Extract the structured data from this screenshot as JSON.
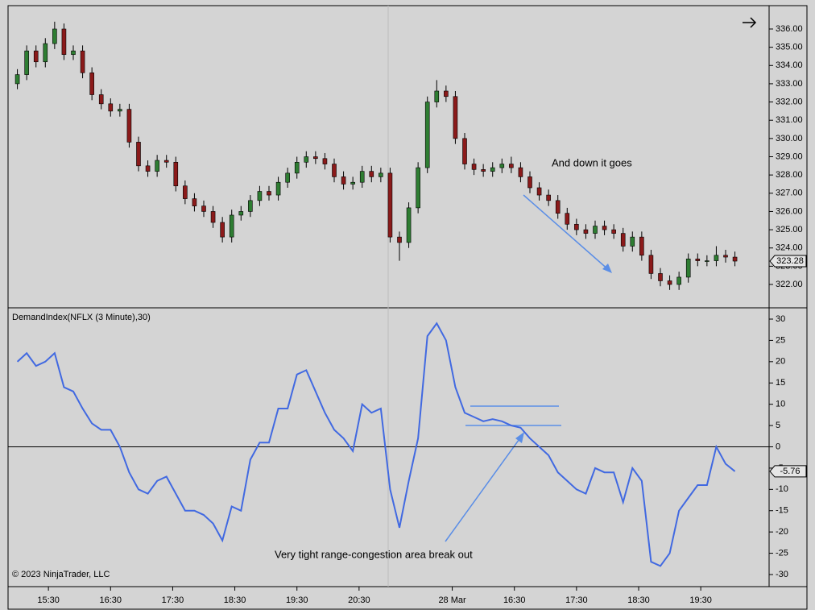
{
  "chart_data": [
    {
      "type": "candlestick",
      "annotation": "And down it goes",
      "up_color": "#2e7d32",
      "down_color": "#8b1a1a",
      "x": [
        3,
        6,
        9,
        12,
        15,
        18,
        21,
        24,
        27,
        30,
        33,
        36,
        39,
        42,
        45,
        48,
        51,
        54,
        57,
        60,
        63,
        66,
        69,
        72,
        75,
        78,
        81,
        84,
        87,
        90,
        93,
        96,
        99,
        102,
        105,
        108,
        111,
        114,
        117,
        120,
        123,
        126,
        129,
        132,
        135,
        138,
        141,
        144,
        147,
        150,
        153,
        156,
        159,
        162,
        165,
        168,
        171,
        174,
        177,
        180,
        183,
        186,
        189,
        192,
        195,
        198,
        201,
        204,
        207,
        210,
        213,
        216,
        219,
        222,
        225,
        228,
        231,
        234
      ],
      "open": [
        333.0,
        333.5,
        334.8,
        334.2,
        335.2,
        336.0,
        334.6,
        334.8,
        333.6,
        332.4,
        331.9,
        331.5,
        331.6,
        329.8,
        328.5,
        328.2,
        328.8,
        328.7,
        327.4,
        326.7,
        326.3,
        326.0,
        325.4,
        324.6,
        325.8,
        326.0,
        326.6,
        327.1,
        326.9,
        327.6,
        328.1,
        328.7,
        329.0,
        328.9,
        328.6,
        327.9,
        327.5,
        327.6,
        328.2,
        327.9,
        328.1,
        324.6,
        324.3,
        326.2,
        328.4,
        332.0,
        332.6,
        332.3,
        330.0,
        328.6,
        328.3,
        328.2,
        328.4,
        328.6,
        328.4,
        327.9,
        327.3,
        326.9,
        326.6,
        325.9,
        325.3,
        325.0,
        324.8,
        325.2,
        325.0,
        324.8,
        324.1,
        324.6,
        323.6,
        322.6,
        322.2,
        322.0,
        322.4,
        323.4,
        323.3,
        323.3,
        323.6,
        323.5
      ],
      "high": [
        333.8,
        335.1,
        335.1,
        335.5,
        336.4,
        336.3,
        335.1,
        335.1,
        333.9,
        332.7,
        332.2,
        331.9,
        331.9,
        330.1,
        328.8,
        329.1,
        329.1,
        329.0,
        327.7,
        327.0,
        326.6,
        326.3,
        325.7,
        326.1,
        326.3,
        326.9,
        327.4,
        327.4,
        327.9,
        328.4,
        329.0,
        329.3,
        329.3,
        329.2,
        328.9,
        328.2,
        327.9,
        328.5,
        328.5,
        328.4,
        328.4,
        324.9,
        326.5,
        328.7,
        332.3,
        333.2,
        332.9,
        332.6,
        330.3,
        328.9,
        328.6,
        328.7,
        328.9,
        329.0,
        328.7,
        328.2,
        327.6,
        327.2,
        326.9,
        326.2,
        325.6,
        325.3,
        325.5,
        325.5,
        325.3,
        325.1,
        324.9,
        324.9,
        323.9,
        322.9,
        322.5,
        322.7,
        323.7,
        323.7,
        323.6,
        324.1,
        323.9,
        323.8
      ],
      "low": [
        332.7,
        333.2,
        333.9,
        333.9,
        334.9,
        334.3,
        334.3,
        333.3,
        332.1,
        331.6,
        331.2,
        331.2,
        329.5,
        328.2,
        327.9,
        327.9,
        328.4,
        327.1,
        326.4,
        326.0,
        325.7,
        325.1,
        324.3,
        324.3,
        325.5,
        325.7,
        326.3,
        326.6,
        326.6,
        327.3,
        327.8,
        328.4,
        328.6,
        328.3,
        327.6,
        327.2,
        327.2,
        327.3,
        327.6,
        327.6,
        324.3,
        323.3,
        324.0,
        325.9,
        328.1,
        331.7,
        332.0,
        329.7,
        328.3,
        328.0,
        327.9,
        327.9,
        328.1,
        328.1,
        327.6,
        327.0,
        326.6,
        326.3,
        325.6,
        325.0,
        324.7,
        324.5,
        324.5,
        324.7,
        324.5,
        323.8,
        323.8,
        323.3,
        322.3,
        321.9,
        321.7,
        321.7,
        322.1,
        323.0,
        323.0,
        323.0,
        323.2,
        323.0
      ],
      "close": [
        333.5,
        334.8,
        334.2,
        335.2,
        336.0,
        334.6,
        334.8,
        333.6,
        332.4,
        331.9,
        331.5,
        331.6,
        329.8,
        328.5,
        328.2,
        328.8,
        328.7,
        327.4,
        326.7,
        326.3,
        326.0,
        325.4,
        324.6,
        325.8,
        326.0,
        326.6,
        327.1,
        326.9,
        327.6,
        328.1,
        328.7,
        329.0,
        328.9,
        328.6,
        327.9,
        327.5,
        327.6,
        328.2,
        327.9,
        328.1,
        324.6,
        324.3,
        326.2,
        328.4,
        332.0,
        332.6,
        332.3,
        330.0,
        328.6,
        328.3,
        328.2,
        328.4,
        328.6,
        328.4,
        327.9,
        327.3,
        326.9,
        326.6,
        325.9,
        325.3,
        325.0,
        324.8,
        325.2,
        325.0,
        324.8,
        324.1,
        324.6,
        323.6,
        322.6,
        322.2,
        322.0,
        322.4,
        323.4,
        323.3,
        323.3,
        323.6,
        323.5,
        323.28
      ],
      "xlim": [
        0,
        245
      ],
      "ylim": [
        320.72,
        337.28
      ],
      "yticks": [
        {
          "value": 322,
          "label": "322.00"
        },
        {
          "value": 323,
          "label": "323.00"
        },
        {
          "value": 324,
          "label": "324.00"
        },
        {
          "value": 325,
          "label": "325.00"
        },
        {
          "value": 326,
          "label": "326.00"
        },
        {
          "value": 327,
          "label": "327.00"
        },
        {
          "value": 328,
          "label": "328.00"
        },
        {
          "value": 329,
          "label": "329.00"
        },
        {
          "value": 330,
          "label": "330.00"
        },
        {
          "value": 331,
          "label": "331.00"
        },
        {
          "value": 332,
          "label": "332.00"
        },
        {
          "value": 333,
          "label": "333.00"
        },
        {
          "value": 334,
          "label": "334.00"
        },
        {
          "value": 335,
          "label": "335.00"
        },
        {
          "value": 336,
          "label": "336.00"
        }
      ]
    },
    {
      "type": "line",
      "title": "DemandIndex(NFLX (3 Minute),30)",
      "annotation": "Very tight range-congestion area break out",
      "copyright": "© 2023 NinjaTrader, LLC",
      "color": "#4169e1",
      "x": [
        3,
        6,
        9,
        12,
        15,
        18,
        21,
        24,
        27,
        30,
        33,
        36,
        39,
        42,
        45,
        48,
        51,
        54,
        57,
        60,
        63,
        66,
        69,
        72,
        75,
        78,
        81,
        84,
        87,
        90,
        93,
        96,
        99,
        102,
        105,
        108,
        111,
        114,
        117,
        120,
        123,
        126,
        129,
        132,
        135,
        138,
        141,
        144,
        147,
        150,
        153,
        156,
        159,
        162,
        165,
        168,
        171,
        174,
        177,
        180,
        183,
        186,
        189,
        192,
        195,
        198,
        201,
        204,
        207,
        210,
        213,
        216,
        219,
        222,
        225,
        228,
        231,
        234
      ],
      "values": [
        20,
        22,
        19,
        20,
        22,
        14,
        13,
        9,
        5.5,
        4,
        4,
        0,
        -6,
        -10,
        -11,
        -8,
        -7,
        -11,
        -15,
        -15,
        -16,
        -18,
        -22,
        -14,
        -15,
        -3,
        1,
        1,
        9,
        9,
        17,
        18,
        13,
        8,
        4,
        2,
        -1,
        10,
        8,
        9,
        -10,
        -19,
        -8,
        2,
        26,
        29,
        25,
        14,
        8,
        7,
        6,
        6.5,
        6,
        5,
        4.5,
        2,
        0,
        -2,
        -6,
        -8,
        -10,
        -11,
        -5,
        -6,
        -6,
        -13,
        -5,
        -8,
        -27,
        -28,
        -25,
        -15,
        -12,
        -9,
        -9,
        0,
        -4,
        -5.76
      ],
      "xlim": [
        0,
        245
      ],
      "ylim": [
        -32.84,
        32.46
      ],
      "yticks": [
        30,
        25,
        20,
        15,
        10,
        5,
        0,
        -5,
        -10,
        -15,
        -20,
        -25,
        -30
      ],
      "xticks": [
        {
          "value": 13,
          "label": "15:30"
        },
        {
          "value": 33,
          "label": "16:30"
        },
        {
          "value": 53,
          "label": "17:30"
        },
        {
          "value": 73,
          "label": "18:30"
        },
        {
          "value": 93,
          "label": "19:30"
        },
        {
          "value": 113,
          "label": "20:30"
        },
        {
          "value": 143,
          "label": "28 Mar"
        },
        {
          "value": 163,
          "label": "16:30"
        },
        {
          "value": 183,
          "label": "17:30"
        },
        {
          "value": 203,
          "label": "18:30"
        },
        {
          "value": 223,
          "label": "19:30"
        }
      ]
    }
  ]
}
